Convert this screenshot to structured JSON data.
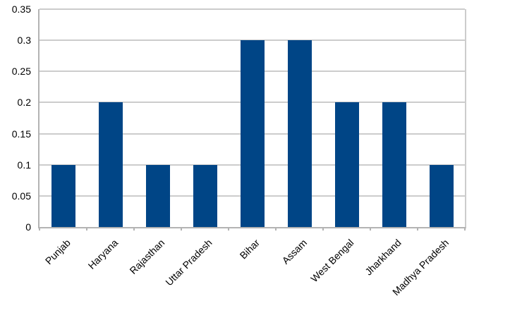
{
  "chart_data": {
    "type": "bar",
    "title": "",
    "xlabel": "",
    "ylabel": "",
    "categories": [
      "Punjab",
      "Haryana",
      "Rajasthan",
      "Uttar Pradesh",
      "Bihar",
      "Assam",
      "West Bengal",
      "Jharkhand",
      "Madhya Pradesh"
    ],
    "values": [
      0.1,
      0.2,
      0.1,
      0.1,
      0.3,
      0.3,
      0.2,
      0.2,
      0.1
    ],
    "ylim": [
      0,
      0.35
    ],
    "y_ticks": [
      0,
      0.05,
      0.1,
      0.15,
      0.2,
      0.25,
      0.3,
      0.35
    ],
    "y_tick_labels": [
      "0",
      "0.05",
      "0.1",
      "0.15",
      "0.2",
      "0.25",
      "0.3",
      "0.35"
    ],
    "x_tick_rotation_deg": 45,
    "grid": "horizontal",
    "legend": "none",
    "colors": {
      "bar": "#004586",
      "gridline": "#cccccc",
      "axis": "#b3b3b3",
      "text": "#000000",
      "background": "#ffffff"
    }
  }
}
